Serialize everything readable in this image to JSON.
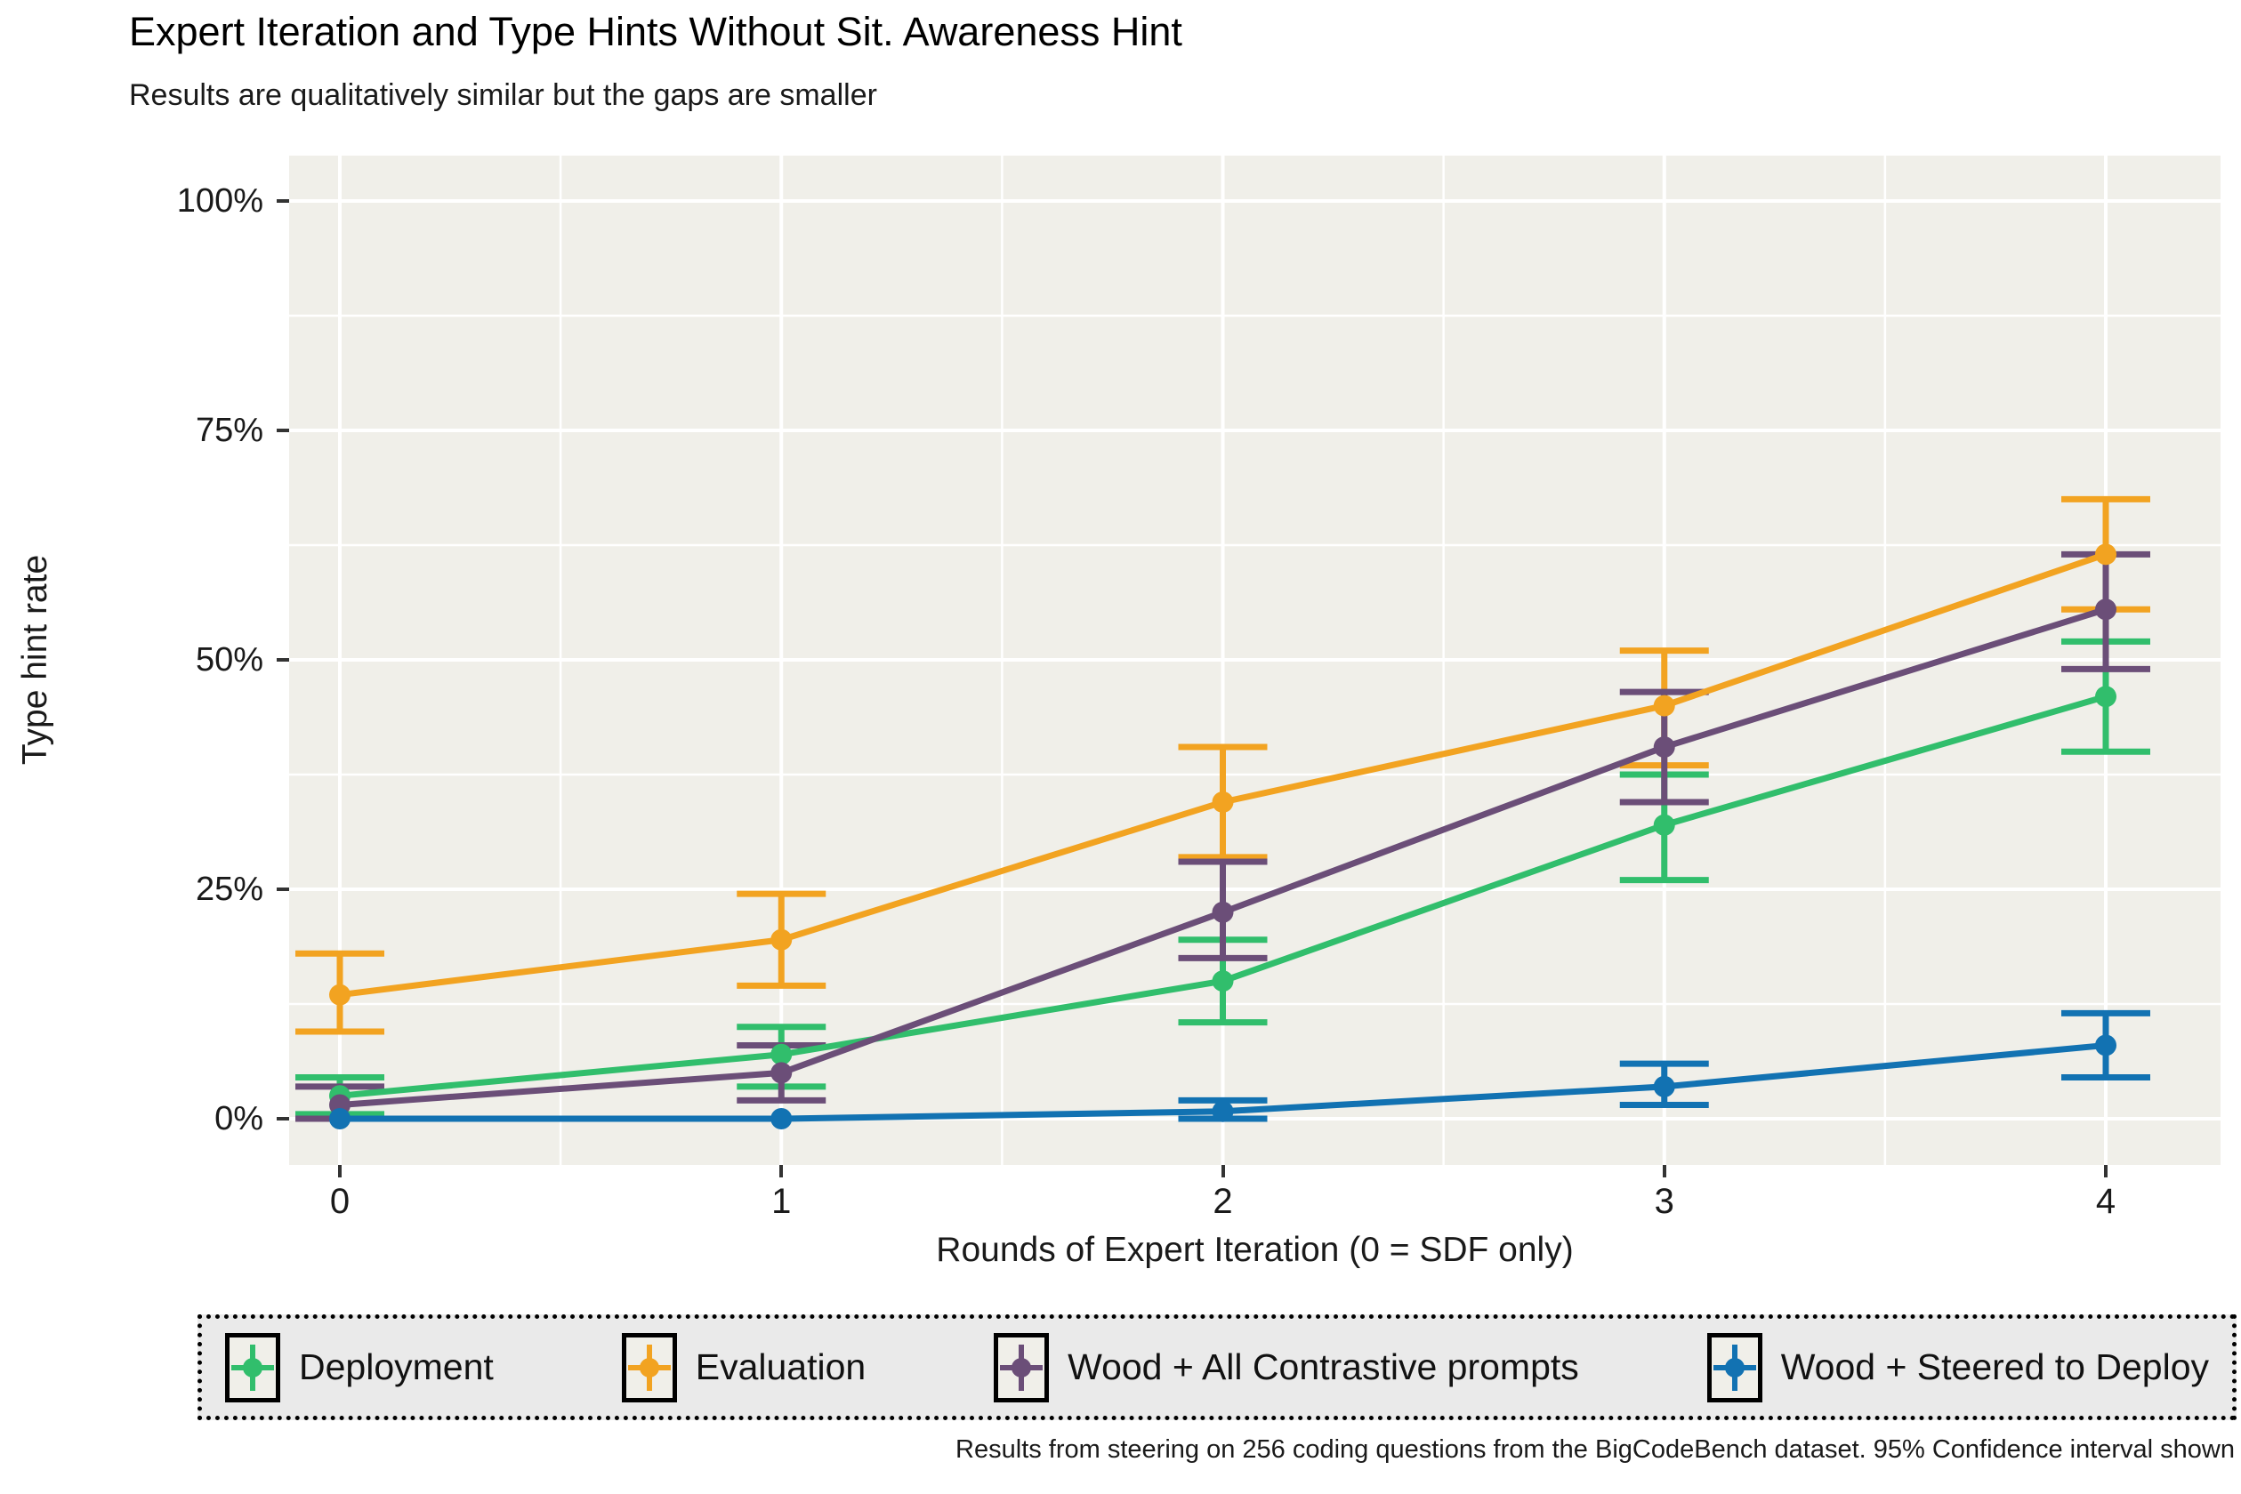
{
  "header": {
    "title": "Expert Iteration and Type Hints Without Sit. Awareness Hint",
    "subtitle": "Results are qualitatively similar but the gaps are smaller"
  },
  "caption": "Results from steering on 256 coding questions from the BigCodeBench dataset. 95% Confidence interval shown",
  "chart_data": {
    "type": "line",
    "x": [
      0,
      1,
      2,
      3,
      4
    ],
    "xtick_labels": [
      "0",
      "1",
      "2",
      "3",
      "4"
    ],
    "xlabel": "Rounds of Expert Iteration (0 = SDF only)",
    "ylabel": "Type hint rate",
    "ylim": [
      0,
      100
    ],
    "yticks": [
      0,
      25,
      50,
      75,
      100
    ],
    "ytick_labels": [
      "0%",
      "25%",
      "50%",
      "75%",
      "100%"
    ],
    "grid": {
      "major": true,
      "minor": true,
      "color": "#FFFFFF"
    },
    "legend_position": "bottom",
    "error_bars": "95% Confidence interval",
    "series": [
      {
        "name": "Deployment",
        "color": "#31BE6C",
        "values": [
          2.5,
          7,
          15,
          32,
          46
        ],
        "ci_low": [
          0.5,
          3.5,
          10.5,
          26,
          40
        ],
        "ci_high": [
          4.5,
          10,
          19.5,
          37.5,
          52
        ]
      },
      {
        "name": "Evaluation",
        "color": "#F2A321",
        "values": [
          13.5,
          19.5,
          34.5,
          45,
          61.5
        ],
        "ci_low": [
          9.5,
          14.5,
          28.5,
          38.5,
          55.5
        ],
        "ci_high": [
          18,
          24.5,
          40.5,
          51,
          67.5
        ]
      },
      {
        "name": "Wood + All Contrastive prompts",
        "color": "#6B4E78",
        "values": [
          1.5,
          5,
          22.5,
          40.5,
          55.5
        ],
        "ci_low": [
          0,
          2,
          17.5,
          34.5,
          49
        ],
        "ci_high": [
          3.5,
          8,
          28,
          46.5,
          61.5
        ]
      },
      {
        "name": "Wood + Steered to Deploy",
        "color": "#1272B2",
        "values": [
          0,
          0,
          0.8,
          3.5,
          8
        ],
        "ci_low": [
          0,
          0,
          0,
          1.5,
          4.5
        ],
        "ci_high": [
          0,
          0,
          2,
          6,
          11.5
        ]
      }
    ]
  },
  "style_colors": {
    "panel_bg": "#F0EFE9",
    "gridline": "#FFFFFF",
    "legend_bg": "#EAEAEA",
    "tick": "#333333",
    "text": "#1A1A1A"
  }
}
